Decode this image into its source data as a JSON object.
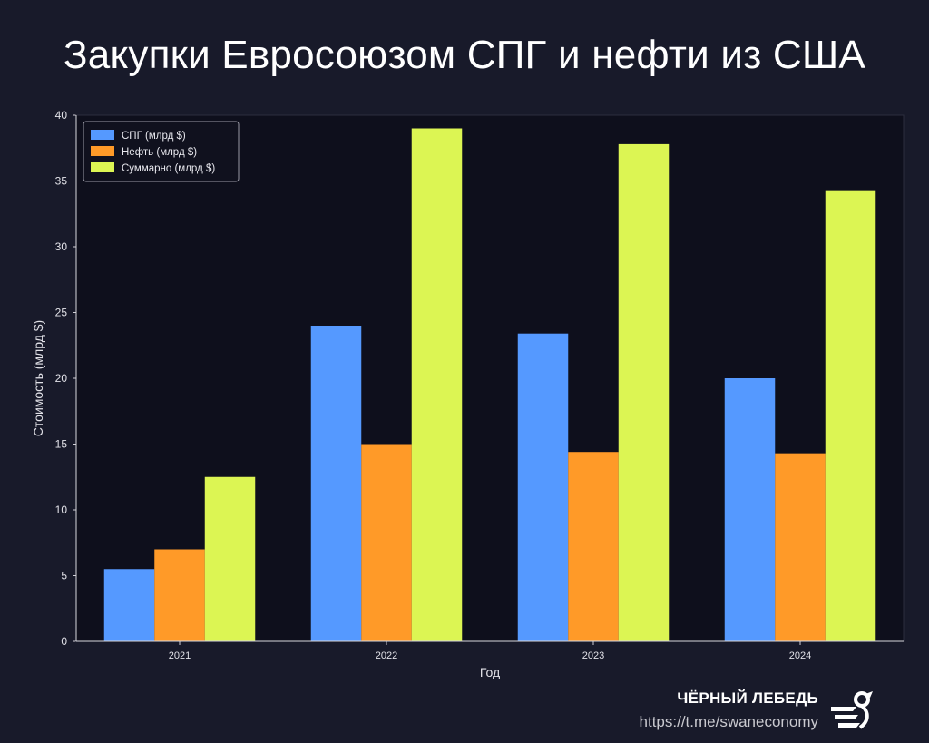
{
  "header": {
    "title": "Закупки Евросоюзом СПГ и нефти из США"
  },
  "footer": {
    "brand": "ЧЁРНЫЙ ЛЕБЕДЬ",
    "link": "https://t.me/swaneconomy",
    "logo_icon": "swan-logo-icon"
  },
  "colors": {
    "background": "#181a2a",
    "plot_background": "#0e0f1c"
  },
  "chart_data": {
    "type": "bar",
    "title": "Закупки Евросоюзом СПГ и нефти из США",
    "xlabel": "Год",
    "ylabel": "Стоимость (млрд $)",
    "categories": [
      "2021",
      "2022",
      "2023",
      "2024"
    ],
    "ylim": [
      0,
      40
    ],
    "yticks": [
      0,
      5,
      10,
      15,
      20,
      25,
      30,
      35,
      40
    ],
    "grid": false,
    "legend_position": "top-left",
    "series": [
      {
        "name": "СПГ (млрд $)",
        "color": "#5599ff",
        "values": [
          5.5,
          24.0,
          23.4,
          20.0
        ]
      },
      {
        "name": "Нефть (млрд $)",
        "color": "#ff9a28",
        "values": [
          7.0,
          15.0,
          14.4,
          14.3
        ]
      },
      {
        "name": "Суммарно (млрд $)",
        "color": "#dcf553",
        "values": [
          12.5,
          39.0,
          37.8,
          34.3
        ]
      }
    ]
  }
}
